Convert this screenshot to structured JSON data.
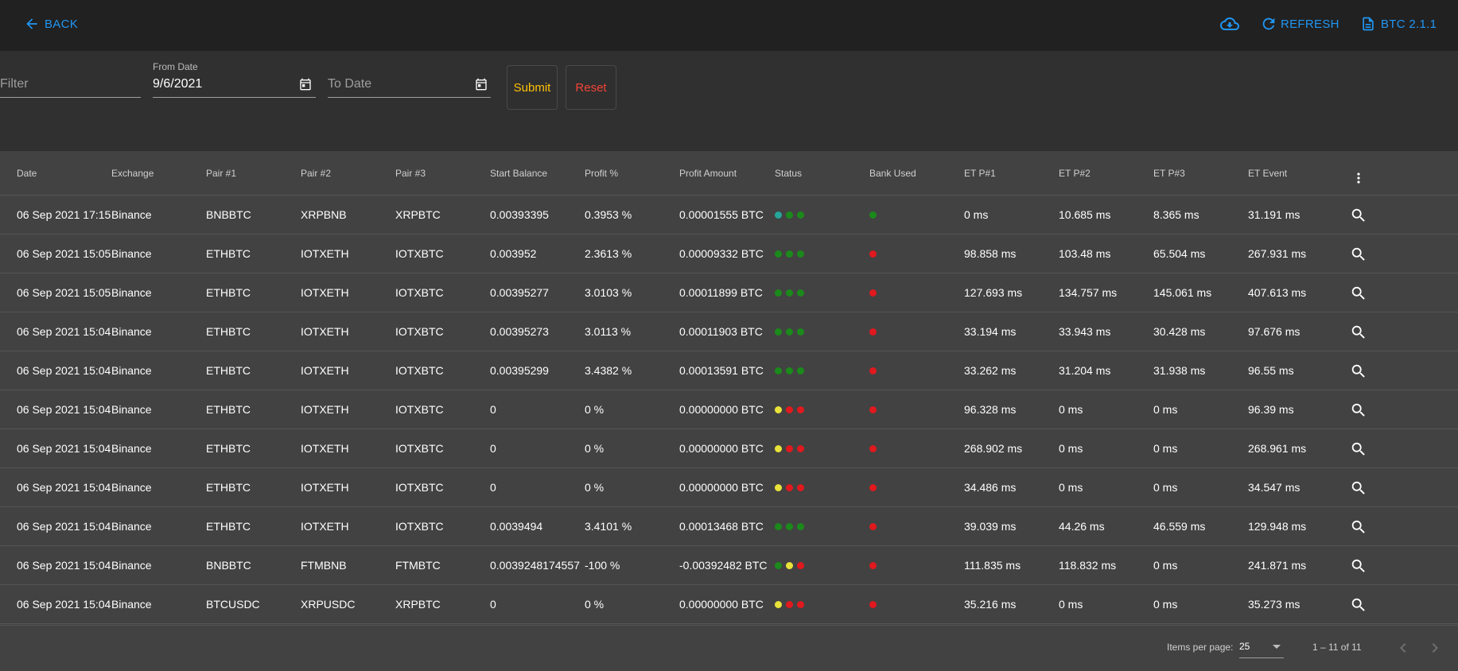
{
  "topbar": {
    "back_label": "BACK",
    "refresh_label": "REFRESH",
    "version_label": "BTC 2.1.1",
    "accent_color": "#2196f3"
  },
  "filters": {
    "filter_placeholder": "Filter",
    "from_date_label": "From Date",
    "from_date_value": "9/6/2021",
    "to_date_placeholder": "To Date",
    "submit_label": "Submit",
    "reset_label": "Reset",
    "submit_color": "#ffc107",
    "reset_color": "#f44336"
  },
  "table": {
    "columns": [
      "Date",
      "Exchange",
      "Pair #1",
      "Pair #2",
      "Pair #3",
      "Start Balance",
      "Profit %",
      "Profit Amount",
      "Status",
      "Bank Used",
      "ET P#1",
      "ET P#2",
      "ET P#3",
      "ET Event"
    ],
    "rows": [
      {
        "date": "06 Sep 2021 17:15",
        "exchange": "Binance",
        "pair1": "BNBBTC",
        "pair2": "XRPBNB",
        "pair3": "XRPBTC",
        "start_balance": "0.00393395",
        "profit_pct": "0.3953 %",
        "profit_amount": "0.00001555 BTC",
        "status": [
          "teal",
          "green",
          "green"
        ],
        "bank_used": "green",
        "et1": "0 ms",
        "et2": "10.685 ms",
        "et3": "8.365 ms",
        "et_event": "31.191 ms"
      },
      {
        "date": "06 Sep 2021 15:05",
        "exchange": "Binance",
        "pair1": "ETHBTC",
        "pair2": "IOTXETH",
        "pair3": "IOTXBTC",
        "start_balance": "0.003952",
        "profit_pct": "2.3613 %",
        "profit_amount": "0.00009332 BTC",
        "status": [
          "green",
          "green",
          "green"
        ],
        "bank_used": "red",
        "et1": "98.858 ms",
        "et2": "103.48 ms",
        "et3": "65.504 ms",
        "et_event": "267.931 ms"
      },
      {
        "date": "06 Sep 2021 15:05",
        "exchange": "Binance",
        "pair1": "ETHBTC",
        "pair2": "IOTXETH",
        "pair3": "IOTXBTC",
        "start_balance": "0.00395277",
        "profit_pct": "3.0103 %",
        "profit_amount": "0.00011899 BTC",
        "status": [
          "green",
          "green",
          "green"
        ],
        "bank_used": "red",
        "et1": "127.693 ms",
        "et2": "134.757 ms",
        "et3": "145.061 ms",
        "et_event": "407.613 ms"
      },
      {
        "date": "06 Sep 2021 15:04",
        "exchange": "Binance",
        "pair1": "ETHBTC",
        "pair2": "IOTXETH",
        "pair3": "IOTXBTC",
        "start_balance": "0.00395273",
        "profit_pct": "3.0113 %",
        "profit_amount": "0.00011903 BTC",
        "status": [
          "green",
          "green",
          "green"
        ],
        "bank_used": "red",
        "et1": "33.194 ms",
        "et2": "33.943 ms",
        "et3": "30.428 ms",
        "et_event": "97.676 ms"
      },
      {
        "date": "06 Sep 2021 15:04",
        "exchange": "Binance",
        "pair1": "ETHBTC",
        "pair2": "IOTXETH",
        "pair3": "IOTXBTC",
        "start_balance": "0.00395299",
        "profit_pct": "3.4382 %",
        "profit_amount": "0.00013591 BTC",
        "status": [
          "green",
          "green",
          "green"
        ],
        "bank_used": "red",
        "et1": "33.262 ms",
        "et2": "31.204 ms",
        "et3": "31.938 ms",
        "et_event": "96.55 ms"
      },
      {
        "date": "06 Sep 2021 15:04",
        "exchange": "Binance",
        "pair1": "ETHBTC",
        "pair2": "IOTXETH",
        "pair3": "IOTXBTC",
        "start_balance": "0",
        "profit_pct": "0 %",
        "profit_amount": "0.00000000 BTC",
        "status": [
          "yellow",
          "red",
          "red"
        ],
        "bank_used": "red",
        "et1": "96.328 ms",
        "et2": "0 ms",
        "et3": "0 ms",
        "et_event": "96.39 ms"
      },
      {
        "date": "06 Sep 2021 15:04",
        "exchange": "Binance",
        "pair1": "ETHBTC",
        "pair2": "IOTXETH",
        "pair3": "IOTXBTC",
        "start_balance": "0",
        "profit_pct": "0 %",
        "profit_amount": "0.00000000 BTC",
        "status": [
          "yellow",
          "red",
          "red"
        ],
        "bank_used": "red",
        "et1": "268.902 ms",
        "et2": "0 ms",
        "et3": "0 ms",
        "et_event": "268.961 ms"
      },
      {
        "date": "06 Sep 2021 15:04",
        "exchange": "Binance",
        "pair1": "ETHBTC",
        "pair2": "IOTXETH",
        "pair3": "IOTXBTC",
        "start_balance": "0",
        "profit_pct": "0 %",
        "profit_amount": "0.00000000 BTC",
        "status": [
          "yellow",
          "red",
          "red"
        ],
        "bank_used": "red",
        "et1": "34.486 ms",
        "et2": "0 ms",
        "et3": "0 ms",
        "et_event": "34.547 ms"
      },
      {
        "date": "06 Sep 2021 15:04",
        "exchange": "Binance",
        "pair1": "ETHBTC",
        "pair2": "IOTXETH",
        "pair3": "IOTXBTC",
        "start_balance": "0.0039494",
        "profit_pct": "3.4101 %",
        "profit_amount": "0.00013468 BTC",
        "status": [
          "green",
          "green",
          "green"
        ],
        "bank_used": "red",
        "et1": "39.039 ms",
        "et2": "44.26 ms",
        "et3": "46.559 ms",
        "et_event": "129.948 ms"
      },
      {
        "date": "06 Sep 2021 15:04",
        "exchange": "Binance",
        "pair1": "BNBBTC",
        "pair2": "FTMBNB",
        "pair3": "FTMBTC",
        "start_balance": "0.0039248174557",
        "profit_pct": "-100 %",
        "profit_amount": "-0.00392482 BTC",
        "status": [
          "green",
          "yellow",
          "red"
        ],
        "bank_used": "red",
        "et1": "111.835 ms",
        "et2": "118.832 ms",
        "et3": "0 ms",
        "et_event": "241.871 ms"
      },
      {
        "date": "06 Sep 2021 15:04",
        "exchange": "Binance",
        "pair1": "BTCUSDC",
        "pair2": "XRPUSDC",
        "pair3": "XRPBTC",
        "start_balance": "0",
        "profit_pct": "0 %",
        "profit_amount": "0.00000000 BTC",
        "status": [
          "yellow",
          "red",
          "red"
        ],
        "bank_used": "red",
        "et1": "35.216 ms",
        "et2": "0 ms",
        "et3": "0 ms",
        "et_event": "35.273 ms"
      }
    ]
  },
  "status_colors": {
    "green": "#1b8a1b",
    "red": "#e0191e",
    "yellow": "#e9e23a",
    "teal": "#26a69a"
  },
  "paginator": {
    "items_per_page_label": "Items per page:",
    "page_size": "25",
    "range_label": "1 – 11 of 11"
  },
  "icons": {
    "back": "arrow-left-icon",
    "cloud": "cloud-download-icon",
    "refresh": "refresh-icon",
    "version": "document-icon",
    "calendar": "calendar-icon",
    "column_menu": "more-vertical-icon",
    "details": "search-icon",
    "prev": "chevron-left-icon",
    "next": "chevron-right-icon"
  }
}
